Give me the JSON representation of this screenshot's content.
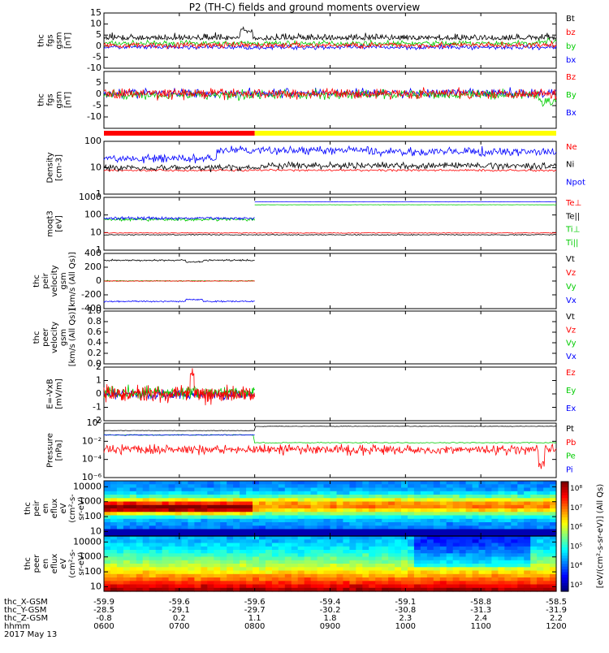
{
  "title": "P2 (TH-C) fields and ground moments overview",
  "date_label": "2017 May 13",
  "colors": {
    "black": "#000000",
    "red": "#ff0000",
    "green": "#00cc00",
    "blue": "#0000ff",
    "yellow": "#ffff00"
  },
  "chart_data": [
    {
      "id": "fgs-top",
      "type": "line",
      "ylabel_lines": [
        "thc",
        "fgs",
        "gsm",
        "[nT]"
      ],
      "yticks": [
        "15",
        "10",
        "5",
        "0",
        "-5",
        "-10"
      ],
      "ylim": [
        -10,
        15
      ],
      "legend": [
        {
          "label": "Bt",
          "color": "#000000"
        },
        {
          "label": "bz",
          "color": "#ff0000"
        },
        {
          "label": "by",
          "color": "#00cc00"
        },
        {
          "label": "bx",
          "color": "#0000ff"
        }
      ]
    },
    {
      "id": "fgs-bottom",
      "type": "line",
      "ylabel_lines": [
        "thc",
        "fgs",
        "gsm",
        "[nT]"
      ],
      "yticks": [
        "5",
        "0",
        "-5",
        "-10"
      ],
      "ylim": [
        -15,
        10
      ],
      "legend": [
        {
          "label": "Bz",
          "color": "#ff0000"
        },
        {
          "label": "By",
          "color": "#00cc00"
        },
        {
          "label": "Bx",
          "color": "#0000ff"
        }
      ]
    },
    {
      "id": "mode-bar",
      "type": "bar",
      "segments": [
        {
          "from": "0600",
          "to": "0800",
          "color": "#ff0000"
        },
        {
          "from": "0800",
          "to": "1200",
          "color": "#ffff00"
        }
      ]
    },
    {
      "id": "density",
      "type": "line",
      "ylabel_lines": [
        "Density",
        "[cm-3]"
      ],
      "yticks": [
        "100",
        "10",
        "1"
      ],
      "ylim": [
        1,
        100
      ],
      "legend": [
        {
          "label": "Ne",
          "color": "#ff0000"
        },
        {
          "label": "Ni",
          "color": "#000000"
        },
        {
          "label": "Npot",
          "color": "#0000ff"
        }
      ]
    },
    {
      "id": "temperature",
      "type": "line",
      "ylabel_lines": [
        "moqt3",
        "[eV]"
      ],
      "yticks": [
        "1000",
        "100",
        "10",
        "1"
      ],
      "ylim": [
        1,
        1000
      ],
      "legend": [
        {
          "label": "Te⊥",
          "color": "#ff0000"
        },
        {
          "label": "Te||",
          "color": "#000000"
        },
        {
          "label": "Ti⊥",
          "color": "#00cc00"
        },
        {
          "label": "Ti||",
          "color": "#00cc00"
        }
      ]
    },
    {
      "id": "peir-velocity",
      "type": "line",
      "ylabel_lines": [
        "thc",
        "peir",
        "velocity",
        "gsm",
        "[km/s (All Qs)]"
      ],
      "yticks": [
        "400",
        "200",
        "0",
        "-200",
        "-400"
      ],
      "ylim": [
        -400,
        400
      ],
      "legend": [
        {
          "label": "Vt",
          "color": "#000000"
        },
        {
          "label": "Vz",
          "color": "#ff0000"
        },
        {
          "label": "Vy",
          "color": "#00cc00"
        },
        {
          "label": "Vx",
          "color": "#0000ff"
        }
      ]
    },
    {
      "id": "peer-velocity",
      "type": "line",
      "ylabel_lines": [
        "thc",
        "peer",
        "velocity",
        "gsm",
        "[km/s (All Qs)]"
      ],
      "yticks": [
        "1.0",
        "0.8",
        "0.6",
        "0.4",
        "0.2",
        "0.0"
      ],
      "ylim": [
        0,
        1
      ],
      "legend": [
        {
          "label": "Vt",
          "color": "#000000"
        },
        {
          "label": "Vz",
          "color": "#ff0000"
        },
        {
          "label": "Vy",
          "color": "#00cc00"
        },
        {
          "label": "Vx",
          "color": "#0000ff"
        }
      ]
    },
    {
      "id": "efield",
      "type": "line",
      "ylabel_lines": [
        "E=-VxB",
        "[mV/m]"
      ],
      "yticks": [
        "2",
        "1",
        "0",
        "-1",
        "-2"
      ],
      "ylim": [
        -2,
        2
      ],
      "legend": [
        {
          "label": "Ez",
          "color": "#ff0000"
        },
        {
          "label": "Ey",
          "color": "#00cc00"
        },
        {
          "label": "Ex",
          "color": "#0000ff"
        }
      ]
    },
    {
      "id": "pressure",
      "type": "line",
      "ylabel_lines": [
        "Pressure",
        "[nPa]"
      ],
      "yticks": [
        "10⁰",
        "10⁻²",
        "10⁻⁴",
        "10⁻⁶"
      ],
      "ylim": [
        1e-06,
        1
      ],
      "legend": [
        {
          "label": "Pt",
          "color": "#000000"
        },
        {
          "label": "Pb",
          "color": "#ff0000"
        },
        {
          "label": "Pe",
          "color": "#00cc00"
        },
        {
          "label": "Pi",
          "color": "#0000ff"
        }
      ]
    },
    {
      "id": "peir-eflux",
      "type": "heatmap",
      "ylabel_lines": [
        "thc",
        "peir",
        "en",
        "eflux",
        "eV",
        "(cm²-s-",
        "sr-eV)"
      ],
      "yticks": [
        "10000",
        "1000",
        "100",
        "10"
      ],
      "ylim": [
        5,
        25000
      ]
    },
    {
      "id": "peer-eflux",
      "type": "heatmap",
      "ylabel_lines": [
        "thc",
        "peer",
        "en",
        "eflux",
        "eV",
        "(cm²-s-",
        "sr-eV)"
      ],
      "yticks": [
        "10000",
        "1000",
        "100",
        "10"
      ],
      "ylim": [
        5,
        25000
      ]
    }
  ],
  "colorbar": {
    "ticks": [
      "10⁸",
      "10⁷",
      "10⁶",
      "10⁵",
      "10⁴",
      "10³"
    ],
    "label": "[eV/(cm²-s-sr-eV)] (All Qs)"
  },
  "xaxis": {
    "rows": [
      {
        "label": "thc_X-GSM",
        "values": [
          "-59.9",
          "-59.6",
          "-59.6",
          "-59.4",
          "-59.1",
          "-58.8",
          "-58.5"
        ]
      },
      {
        "label": "thc_Y-GSM",
        "values": [
          "-28.5",
          "-29.1",
          "-29.7",
          "-30.2",
          "-30.8",
          "-31.3",
          "-31.9"
        ]
      },
      {
        "label": "thc_Z-GSM",
        "values": [
          "-0.8",
          "0.2",
          "1.1",
          "1.8",
          "2.3",
          "2.4",
          "2.2"
        ]
      },
      {
        "label": "hhmm",
        "values": [
          "0600",
          "0700",
          "0800",
          "0900",
          "1000",
          "1100",
          "1200"
        ]
      }
    ]
  }
}
